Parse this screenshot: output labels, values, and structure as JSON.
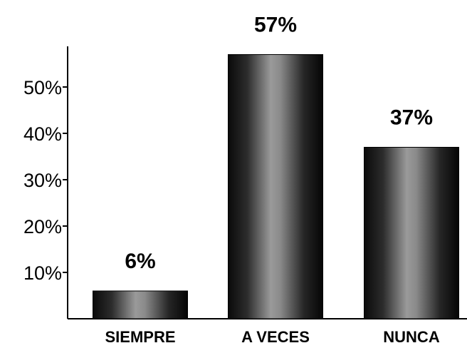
{
  "chart_data": {
    "type": "bar",
    "categories": [
      "SIEMPRE",
      "A VECES",
      "NUNCA"
    ],
    "values": [
      6,
      57,
      37
    ],
    "data_labels": [
      "6%",
      "57%",
      "37%"
    ],
    "title": "",
    "xlabel": "",
    "ylabel": "",
    "ylim": [
      0,
      60
    ],
    "yticks": [
      10,
      20,
      30,
      40,
      50
    ],
    "ytick_labels": [
      "10%",
      "20%",
      "30%",
      "40%",
      "50%"
    ],
    "grid": false,
    "legend": "none",
    "bar_style": "cylindrical black-gray gradient"
  }
}
